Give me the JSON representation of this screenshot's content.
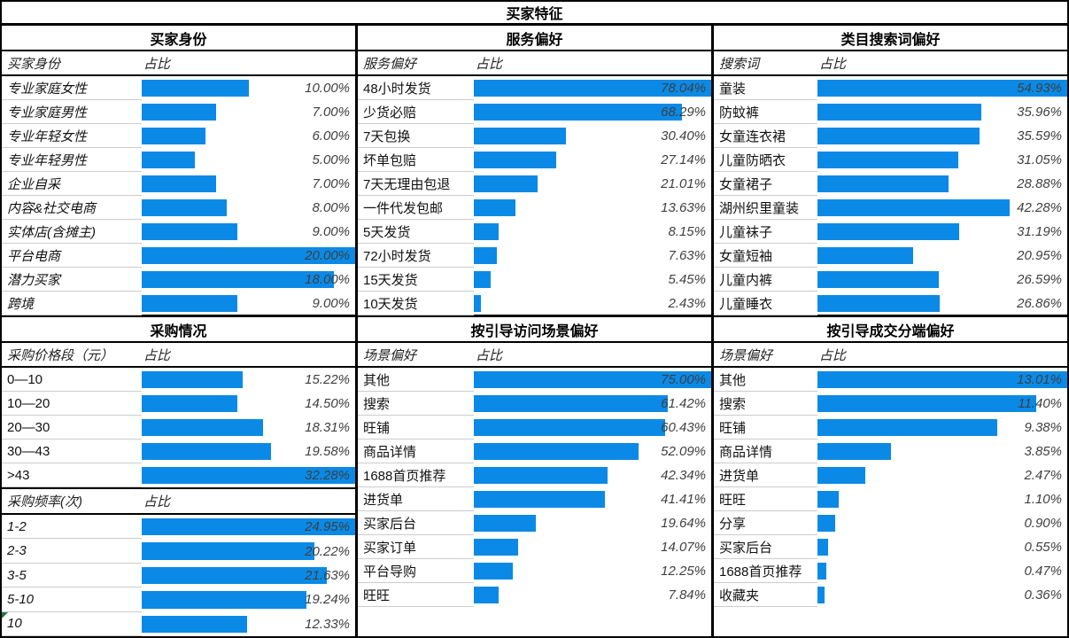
{
  "title": "买家特征",
  "colors": {
    "bar": "#0a8ae6",
    "percent_text": "#3f3f3f",
    "label_text": "#111111",
    "border": "#000000",
    "row_separator": "#cccccc",
    "corner_flag": "#1c7c3c"
  },
  "chart_data": [
    {
      "id": "buyer_identity",
      "type": "bar",
      "panel": "top-left",
      "title": "买家身份",
      "col_header": [
        "买家身份",
        "占比"
      ],
      "axis_max": 20,
      "label_italic": true,
      "categories": [
        "专业家庭女性",
        "专业家庭男性",
        "专业年轻女性",
        "专业年轻男性",
        "企业自采",
        "内容&社交电商",
        "实体店(含摊主)",
        "平台电商",
        "潜力买家",
        "跨境"
      ],
      "values": [
        10.0,
        7.0,
        6.0,
        5.0,
        7.0,
        8.0,
        9.0,
        20.0,
        18.0,
        9.0
      ],
      "value_labels": [
        "10.00%",
        "7.00%",
        "6.00%",
        "5.00%",
        "7.00%",
        "8.00%",
        "9.00%",
        "20.00%",
        "18.00%",
        "9.00%"
      ]
    },
    {
      "id": "service_pref",
      "type": "bar",
      "panel": "top-middle",
      "title": "服务偏好",
      "col_header": [
        "服务偏好",
        "占比"
      ],
      "axis_max": 78.04,
      "label_italic": false,
      "categories": [
        "48小时发货",
        "少货必赔",
        "7天包换",
        "坏单包赔",
        "7天无理由包退",
        "一件代发包邮",
        "5天发货",
        "72小时发货",
        "15天发货",
        "10天发货"
      ],
      "values": [
        78.04,
        68.29,
        30.4,
        27.14,
        21.01,
        13.63,
        8.15,
        7.63,
        5.45,
        2.43
      ],
      "value_labels": [
        "78.04%",
        "68.29%",
        "30.40%",
        "27.14%",
        "21.01%",
        "13.63%",
        "8.15%",
        "7.63%",
        "5.45%",
        "2.43%"
      ]
    },
    {
      "id": "search_terms",
      "type": "bar",
      "panel": "top-right",
      "title": "类目搜索词偏好",
      "col_header": [
        "搜索词",
        "占比"
      ],
      "axis_max": 54.93,
      "label_italic": false,
      "categories": [
        "童装",
        "防蚊裤",
        "女童连衣裙",
        "儿童防晒衣",
        "女童裙子",
        "湖州织里童装",
        "儿童袜子",
        "女童短袖",
        "儿童内裤",
        "儿童睡衣"
      ],
      "values": [
        54.93,
        35.96,
        35.59,
        31.05,
        28.88,
        42.28,
        31.19,
        20.95,
        26.59,
        26.86
      ],
      "value_labels": [
        "54.93%",
        "35.96%",
        "35.59%",
        "31.05%",
        "28.88%",
        "42.28%",
        "31.19%",
        "20.95%",
        "26.59%",
        "26.86%"
      ]
    },
    {
      "id": "purchase_price",
      "type": "bar",
      "panel": "bottom-left",
      "title": "采购情况",
      "col_header": [
        "采购价格段（元）",
        "占比"
      ],
      "axis_max": 32.28,
      "label_italic": false,
      "categories": [
        "0—10",
        "10—20",
        "20—30",
        "30—43",
        ">43"
      ],
      "values": [
        15.22,
        14.5,
        18.31,
        19.58,
        32.28
      ],
      "value_labels": [
        "15.22%",
        "14.50%",
        "18.31%",
        "19.58%",
        "32.28%"
      ]
    },
    {
      "id": "purchase_freq",
      "type": "bar",
      "panel": "bottom-left",
      "title": null,
      "col_header": [
        "采购频率(次)",
        "占比"
      ],
      "axis_max": 24.95,
      "label_italic": true,
      "grow": true,
      "flag_rows": [
        4
      ],
      "categories": [
        "1-2",
        "2-3",
        "3-5",
        "5-10",
        "10"
      ],
      "values": [
        24.95,
        20.22,
        21.63,
        19.24,
        12.33
      ],
      "value_labels": [
        "24.95%",
        "20.22%",
        "21.63%",
        "19.24%",
        "12.33%"
      ]
    },
    {
      "id": "visit_scene",
      "type": "bar",
      "panel": "bottom-middle",
      "title": "按引导访问场景偏好",
      "col_header": [
        "场景偏好",
        "占比"
      ],
      "axis_max": 75.0,
      "label_italic": false,
      "categories": [
        "其他",
        "搜索",
        "旺铺",
        "商品详情",
        "1688首页推荐",
        "进货单",
        "买家后台",
        "买家订单",
        "平台导购",
        "旺旺"
      ],
      "values": [
        75.0,
        61.42,
        60.43,
        52.09,
        42.34,
        41.41,
        19.64,
        14.07,
        12.25,
        7.84
      ],
      "value_labels": [
        "75.00%",
        "61.42%",
        "60.43%",
        "52.09%",
        "42.34%",
        "41.41%",
        "19.64%",
        "14.07%",
        "12.25%",
        "7.84%"
      ]
    },
    {
      "id": "deal_terminal",
      "type": "bar",
      "panel": "bottom-right",
      "title": "按引导成交分端偏好",
      "col_header": [
        "场景偏好",
        "占比"
      ],
      "axis_max": 13.01,
      "label_italic": false,
      "categories": [
        "其他",
        "搜索",
        "旺铺",
        "商品详情",
        "进货单",
        "旺旺",
        "分享",
        "买家后台",
        "1688首页推荐",
        "收藏夹"
      ],
      "values": [
        13.01,
        11.4,
        9.38,
        3.85,
        2.47,
        1.1,
        0.9,
        0.55,
        0.47,
        0.36
      ],
      "value_labels": [
        "13.01%",
        "11.40%",
        "9.38%",
        "3.85%",
        "2.47%",
        "1.10%",
        "0.90%",
        "0.55%",
        "0.47%",
        "0.36%"
      ]
    }
  ]
}
